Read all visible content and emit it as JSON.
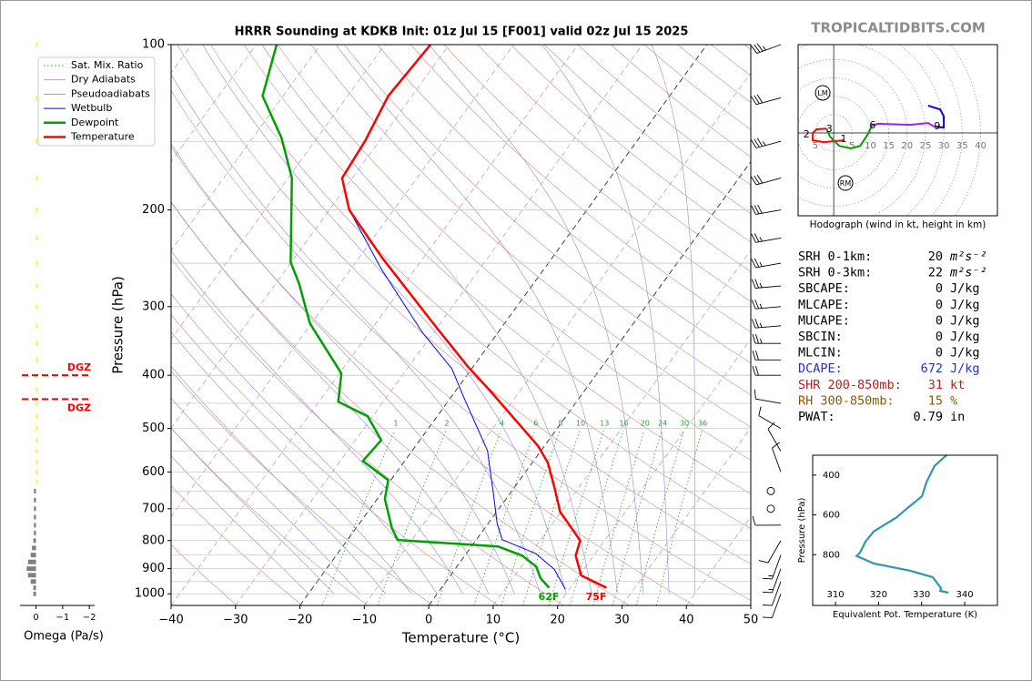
{
  "header": {
    "watermark": "TROPICALTIDBITS.COM"
  },
  "chart_data": [
    {
      "type": "skewt",
      "title": "HRRR Sounding at KDKB Init: 01z Jul 15 [F001] valid 02z Jul 15 2025",
      "xlabel": "Temperature (°C)",
      "ylabel": "Pressure (hPa)",
      "xlim": [
        -40,
        50
      ],
      "xticks": [
        {
          "value": -40,
          "label": "−40"
        },
        {
          "value": -30,
          "label": "−30"
        },
        {
          "value": -20,
          "label": "−20"
        },
        {
          "value": -10,
          "label": "−10"
        },
        0,
        10,
        20,
        30,
        40,
        50
      ],
      "ylim": [
        1050,
        100
      ],
      "log": true,
      "yticks": [
        100,
        200,
        300,
        400,
        500,
        600,
        700,
        800,
        900,
        1000
      ],
      "yminor": [
        150,
        250,
        350,
        450,
        550,
        650,
        750,
        850,
        950
      ],
      "grid": true,
      "legend": "upper left",
      "reference_lines": [
        {
          "name": "Sat. Mix. Ratio",
          "color": "#2ca02c",
          "style": "dotted"
        },
        {
          "name": "Dry Adiabats",
          "color": "#d98c8c",
          "style": "solid"
        },
        {
          "name": "Pseudoadiabats",
          "color": "#8c8cd9",
          "style": "solid"
        }
      ],
      "series": [
        {
          "name": "Wetbulb",
          "color": "#0000ff",
          "linewidth": 1,
          "pressure": [
            981,
            902,
            845,
            797,
            745,
            652,
            549,
            445,
            389,
            334,
            256,
            200
          ],
          "values": [
            19.4,
            15.4,
            10.8,
            4.0,
            1.4,
            -2.8,
            -8.3,
            -17.4,
            -23.1,
            -31.8,
            -45.3,
            -56.9
          ]
        },
        {
          "name": "Dewpoint",
          "color": "#00a000",
          "linewidth": 2.5,
          "pressure": [
            975,
            937,
            892,
            852,
            820,
            798,
            760,
            672,
            621,
            573,
            525,
            475,
            447,
            397,
            322,
            273,
            249,
            175,
            148,
            124,
            100
          ],
          "values": [
            16.7,
            14.3,
            12.3,
            8.9,
            4.1,
            -12.2,
            -14.4,
            -18.8,
            -20.4,
            -26.5,
            -26.0,
            -30.8,
            -37.0,
            -39.7,
            -50.2,
            -56.3,
            -60.1,
            -69.4,
            -75.5,
            -83.2,
            -86.8
          ]
        },
        {
          "name": "Temperature",
          "color": "#ff0000",
          "linewidth": 2.5,
          "pressure": [
            975,
            926,
            852,
            800,
            754,
            710,
            640,
            577,
            538,
            477,
            428,
            386,
            324,
            244,
            200,
            175,
            150,
            124,
            100
          ],
          "values": [
            25.6,
            20.3,
            17.2,
            16.2,
            13.1,
            9.9,
            6.2,
            2.4,
            -1.0,
            -8.1,
            -14.5,
            -20.8,
            -30.7,
            -46.5,
            -56.9,
            -61.6,
            -62.2,
            -63.7,
            -62.9
          ]
        }
      ],
      "mixing_ratios": [
        1,
        2,
        4,
        6,
        8,
        10,
        13,
        16,
        20,
        24,
        30,
        36
      ],
      "dashed_isotherms": [
        -20,
        0
      ],
      "surface_labels": [
        {
          "text": "62F",
          "color": "#00a000"
        },
        {
          "text": "75F",
          "color": "#ff0000"
        }
      ],
      "wind": {
        "pressure": [
          100,
          125,
          150,
          175,
          200,
          225,
          250,
          275,
          300,
          325,
          350,
          375,
          400,
          450,
          500,
          550,
          600,
          650,
          700,
          750,
          800,
          850,
          900,
          950,
          1000
        ],
        "speed": [
          35,
          30,
          35,
          30,
          30,
          25,
          25,
          25,
          25,
          25,
          25,
          20,
          20,
          10,
          10,
          10,
          10,
          0,
          0,
          10,
          10,
          15,
          15,
          10,
          10
        ],
        "direction": [
          250,
          255,
          255,
          255,
          260,
          260,
          260,
          265,
          265,
          265,
          270,
          270,
          270,
          280,
          300,
          330,
          340,
          0,
          0,
          270,
          210,
          200,
          200,
          200,
          200
        ]
      }
    },
    {
      "type": "omega",
      "xlabel": "Omega (Pa/s)",
      "xlim": [
        0.6,
        -2.2
      ],
      "xticks": [
        0,
        {
          "value": -1,
          "label": "−1"
        },
        {
          "value": -2,
          "label": "−2"
        }
      ],
      "levels": [
        100,
        125,
        150,
        175,
        200,
        225,
        250,
        275,
        300,
        325,
        350,
        375,
        400,
        425,
        450,
        475,
        500,
        525,
        550,
        575,
        600,
        625,
        650,
        675,
        700,
        725,
        750,
        775,
        800,
        825,
        850,
        875,
        900,
        925,
        950,
        975,
        1000
      ],
      "values": [
        -0.04,
        -0.04,
        -0.04,
        -0.04,
        -0.04,
        -0.04,
        -0.04,
        -0.04,
        -0.04,
        -0.04,
        -0.04,
        -0.04,
        -0.04,
        -0.04,
        -0.04,
        -0.04,
        -0.04,
        -0.04,
        -0.04,
        -0.04,
        -0.04,
        -0.04,
        0.08,
        0.08,
        0.08,
        0.08,
        0.08,
        0.08,
        0.1,
        0.15,
        0.2,
        0.3,
        0.35,
        0.3,
        0.2,
        0.1,
        0.1
      ],
      "color_up": "#ffe000",
      "color_down": "#808080",
      "dgz": {
        "pressure": [
          400,
          442
        ],
        "labels": [
          "DGZ",
          "DGZ"
        ],
        "color": "#ff0000"
      }
    },
    {
      "type": "hodograph",
      "caption": "Hodograph (wind in kt, height in km)",
      "xlim": [
        -9.7,
        44.6
      ],
      "ylim": [
        -22.5,
        24
      ],
      "xticks": [
        {
          "value": -5,
          "label": "5"
        },
        5,
        10,
        15,
        20,
        25,
        30,
        35,
        40
      ],
      "segments": [
        {
          "color": "#ff0000",
          "u": [
            2.7,
            -2.7,
            -5.7,
            -5.7,
            -4.7,
            -2.0
          ],
          "v": [
            -2.0,
            -2.5,
            -2.0,
            0,
            1.0,
            1.2
          ]
        },
        {
          "color": "#00a000",
          "u": [
            -2.0,
            -1.0,
            1.5,
            4.7,
            7.2,
            9.2,
            10.4
          ],
          "v": [
            1.2,
            -1.0,
            -3.5,
            -4.2,
            -3.5,
            -0.5,
            2.0
          ]
        },
        {
          "color": "#a020f0",
          "u": [
            10.4,
            12.1,
            20.8,
            25.7,
            27.5
          ],
          "v": [
            2.0,
            2.5,
            2.2,
            2.7,
            1.7
          ]
        },
        {
          "color": "#0000ff",
          "u": [
            27.5,
            30,
            30,
            29,
            25.7
          ],
          "v": [
            1.7,
            1.5,
            4.5,
            6.4,
            7.4
          ]
        }
      ],
      "heights": {
        "labels": [
          1,
          2,
          3,
          6,
          9
        ],
        "u": [
          2.7,
          -7.4,
          -1.2,
          10.6,
          28.2
        ],
        "v": [
          -1.7,
          -0.5,
          1.0,
          2.0,
          1.7
        ]
      },
      "storm_motion": {
        "labels": [
          "LM",
          "RM"
        ],
        "u": [
          -3.0,
          3.2
        ],
        "v": [
          10.9,
          -13.6
        ]
      }
    },
    {
      "type": "line",
      "xlabel": "Equivalent Pot. Temperature (K)",
      "ylabel": "Pressure (hPa)",
      "xlim": [
        304.7,
        347.6
      ],
      "ylim": [
        1055,
        300
      ],
      "xticks": [
        310,
        320,
        330,
        340
      ],
      "yticks": [
        400,
        600,
        800
      ],
      "color": "#2e97b3",
      "x": [
        335.8,
        333.0,
        331.1,
        330.1,
        326.7,
        324.2,
        318.9,
        317.0,
        315.7,
        314.9,
        318.9,
        327.3,
        332.6,
        334.5,
        334.3,
        336.2
      ],
      "values": [
        299,
        354,
        437,
        506,
        566,
        612,
        683,
        733,
        789,
        807,
        844,
        880,
        913,
        968,
        982,
        991
      ]
    }
  ],
  "stats": {
    "rows": [
      {
        "label": "SRH 0-1km:",
        "value": 20,
        "unit": "m²s⁻²",
        "color": "#000000"
      },
      {
        "label": "SRH 0-3km:",
        "value": 22,
        "unit": "m²s⁻²",
        "color": "#000000"
      },
      {
        "label": "SBCAPE:",
        "value": 0,
        "unit": "J/kg",
        "color": "#000000"
      },
      {
        "label": "MLCAPE:",
        "value": 0,
        "unit": "J/kg",
        "color": "#000000"
      },
      {
        "label": "MUCAPE:",
        "value": 0,
        "unit": "J/kg",
        "color": "#000000"
      },
      {
        "label": "SBCIN:",
        "value": 0,
        "unit": "J/kg",
        "color": "#000000"
      },
      {
        "label": "MLCIN:",
        "value": 0,
        "unit": "J/kg",
        "color": "#000000"
      },
      {
        "label": "DCAPE:",
        "value": 672,
        "unit": "J/kg",
        "color": "#2b2bd0"
      },
      {
        "label": "SHR 200-850mb:",
        "value": 31,
        "unit": "kt",
        "color": "#b22222"
      },
      {
        "label": "RH 300-850mb:",
        "value": 15,
        "unit": "%",
        "color": "#8b5a00"
      },
      {
        "label": "PWAT:",
        "value": 0.79,
        "unit": "in",
        "color": "#000000"
      }
    ]
  }
}
